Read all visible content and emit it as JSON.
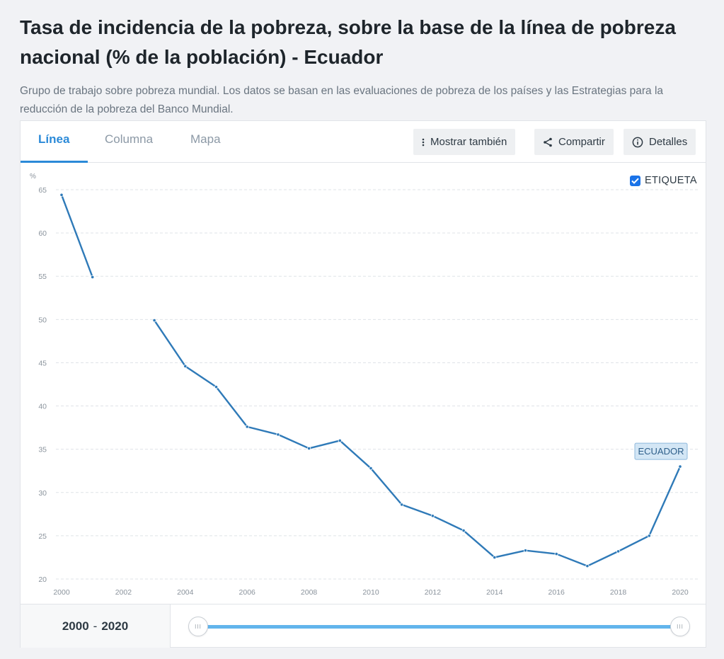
{
  "header": {
    "title": "Tasa de incidencia de la pobreza, sobre la base de la línea de pobreza nacional (% de la población) - Ecuador",
    "description": "Grupo de trabajo sobre pobreza mundial. Los datos se basan en las evaluaciones de pobreza de los países y las Estrategias para la reducción de la pobreza del Banco Mundial."
  },
  "tabs": [
    {
      "label": "Línea",
      "active": true
    },
    {
      "label": "Columna",
      "active": false
    },
    {
      "label": "Mapa",
      "active": false
    }
  ],
  "toolbar": {
    "show_also_label": "Mostrar también",
    "share_label": "Compartir",
    "details_label": "Detalles"
  },
  "legend": {
    "label": "ETIQUETA",
    "checked": true
  },
  "range": {
    "start": "2000",
    "sep": "-",
    "end": "2020",
    "start_handle": "III",
    "end_handle": "III"
  },
  "colors": {
    "accent": "#2b8ad8",
    "line": "#2f7ab8",
    "slider": "#62b5ec",
    "label_bg": "#d3e6f5"
  },
  "chart_data": {
    "type": "line",
    "title": "",
    "ylabel": "%",
    "xlabel": "",
    "ylim": [
      20,
      65
    ],
    "xlim": [
      2000,
      2020
    ],
    "grid": true,
    "yticks": [
      65,
      60,
      55,
      50,
      45,
      40,
      35,
      30,
      25,
      20
    ],
    "xticks": [
      2000,
      2002,
      2004,
      2006,
      2008,
      2010,
      2012,
      2014,
      2016,
      2018,
      2020
    ],
    "series": [
      {
        "name": "ECUADOR",
        "points": [
          [
            2000,
            64.4
          ],
          [
            2001,
            54.9
          ],
          [
            2002,
            null
          ],
          [
            2003,
            49.9
          ],
          [
            2004,
            44.6
          ],
          [
            2005,
            42.2
          ],
          [
            2006,
            37.6
          ],
          [
            2007,
            36.7
          ],
          [
            2008,
            35.1
          ],
          [
            2009,
            36.0
          ],
          [
            2010,
            32.8
          ],
          [
            2011,
            28.6
          ],
          [
            2012,
            27.3
          ],
          [
            2013,
            25.6
          ],
          [
            2014,
            22.5
          ],
          [
            2015,
            23.3
          ],
          [
            2016,
            22.9
          ],
          [
            2017,
            21.5
          ],
          [
            2018,
            23.2
          ],
          [
            2019,
            25.0
          ],
          [
            2020,
            33.0
          ]
        ]
      }
    ]
  }
}
